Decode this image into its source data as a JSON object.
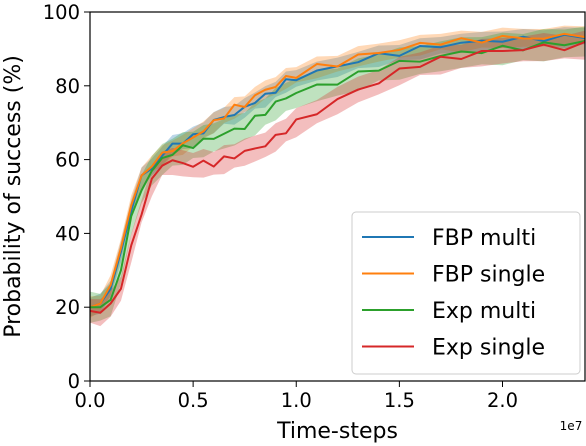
{
  "chart_data": {
    "type": "line",
    "title": "",
    "xlabel": "Time-steps",
    "ylabel": "Probability of success (%)",
    "x_offset_label": "1e7",
    "xlim": [
      0,
      2.4
    ],
    "ylim": [
      0,
      100
    ],
    "xticks": [
      0.0,
      0.5,
      1.0,
      1.5,
      2.0
    ],
    "xtick_labels": [
      "0.0",
      "0.5",
      "1.0",
      "1.5",
      "2.0"
    ],
    "yticks": [
      0,
      20,
      40,
      60,
      80,
      100
    ],
    "ytick_labels": [
      "0",
      "20",
      "40",
      "60",
      "80",
      "100"
    ],
    "grid": false,
    "legend_position": "lower-right",
    "series": [
      {
        "name": "FBP multi",
        "color": "#1f77b4",
        "x": [
          0,
          0.05,
          0.1,
          0.15,
          0.2,
          0.25,
          0.3,
          0.35,
          0.4,
          0.45,
          0.5,
          0.55,
          0.6,
          0.65,
          0.7,
          0.75,
          0.8,
          0.85,
          0.9,
          0.95,
          1.0,
          1.1,
          1.2,
          1.3,
          1.4,
          1.5,
          1.6,
          1.7,
          1.8,
          1.9,
          2.0,
          2.1,
          2.2,
          2.3,
          2.4
        ],
        "y": [
          20,
          21,
          25,
          35,
          47,
          55,
          58,
          61,
          64,
          65,
          66,
          68,
          70,
          72,
          72,
          74,
          76,
          77,
          79,
          81,
          82,
          84,
          85,
          87,
          88,
          89,
          90,
          91,
          91.5,
          92,
          92.5,
          92.5,
          93,
          93,
          93.5
        ],
        "band": 2.5
      },
      {
        "name": "FBP single",
        "color": "#ff7f0e",
        "x": [
          0,
          0.05,
          0.1,
          0.15,
          0.2,
          0.25,
          0.3,
          0.35,
          0.4,
          0.45,
          0.5,
          0.55,
          0.6,
          0.65,
          0.7,
          0.75,
          0.8,
          0.85,
          0.9,
          0.95,
          1.0,
          1.1,
          1.2,
          1.3,
          1.4,
          1.5,
          1.6,
          1.7,
          1.8,
          1.9,
          2.0,
          2.1,
          2.2,
          2.3,
          2.4
        ],
        "y": [
          20,
          21,
          26,
          36,
          48,
          55,
          59,
          61,
          63,
          64,
          66,
          68,
          70,
          72,
          74,
          75,
          77,
          79,
          80,
          82,
          83,
          85,
          86,
          88,
          89,
          90,
          91,
          92,
          92,
          92.5,
          93,
          93,
          93,
          93.5,
          94
        ],
        "band": 2.5
      },
      {
        "name": "Exp multi",
        "color": "#2ca02c",
        "x": [
          0,
          0.05,
          0.1,
          0.15,
          0.2,
          0.25,
          0.3,
          0.35,
          0.4,
          0.45,
          0.5,
          0.55,
          0.6,
          0.65,
          0.7,
          0.75,
          0.8,
          0.85,
          0.9,
          0.95,
          1.0,
          1.1,
          1.2,
          1.3,
          1.4,
          1.5,
          1.6,
          1.7,
          1.8,
          1.9,
          2.0,
          2.1,
          2.2,
          2.3,
          2.4
        ],
        "y": [
          20,
          20,
          22,
          30,
          44,
          52,
          57,
          60,
          62,
          63,
          64,
          65,
          66,
          67,
          68,
          69,
          71,
          73,
          75,
          77,
          78,
          80,
          81,
          83,
          85,
          86,
          87,
          88,
          89,
          89.5,
          90,
          90.5,
          91,
          91.5,
          92
        ],
        "band": 4
      },
      {
        "name": "Exp single",
        "color": "#d62728",
        "x": [
          0,
          0.05,
          0.1,
          0.15,
          0.2,
          0.25,
          0.3,
          0.35,
          0.4,
          0.45,
          0.5,
          0.55,
          0.6,
          0.65,
          0.7,
          0.75,
          0.8,
          0.85,
          0.9,
          0.95,
          1.0,
          1.1,
          1.2,
          1.3,
          1.4,
          1.5,
          1.6,
          1.7,
          1.8,
          1.9,
          2.0,
          2.1,
          2.2,
          2.3,
          2.4
        ],
        "y": [
          19,
          18.5,
          21,
          25,
          36,
          46,
          54,
          59,
          59.5,
          59,
          58.5,
          59,
          59,
          60,
          61,
          62,
          63,
          64,
          66,
          68,
          70,
          73,
          76,
          79,
          81,
          84,
          86,
          87,
          88,
          89,
          89.5,
          90,
          90.5,
          90.5,
          91
        ],
        "band": 3.5
      }
    ]
  }
}
